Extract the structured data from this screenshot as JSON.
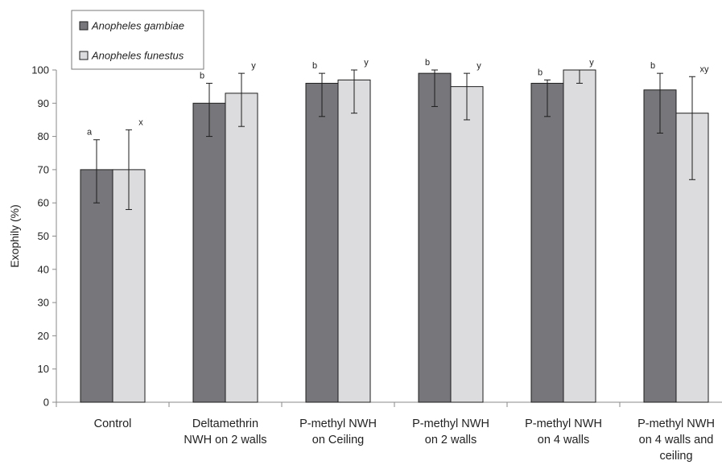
{
  "chart_data": {
    "type": "bar",
    "ylabel": "Exophily (%)",
    "xlabel": "",
    "ylim": [
      0,
      100
    ],
    "yticks": [
      0,
      10,
      20,
      30,
      40,
      50,
      60,
      70,
      80,
      90,
      100
    ],
    "grid": false,
    "legend_position": "top-left",
    "categories": [
      [
        "Control"
      ],
      [
        "Deltamethrin",
        "NWH on 2 walls"
      ],
      [
        "P-methyl NWH",
        "on Ceiling"
      ],
      [
        "P-methyl NWH",
        "on 2 walls"
      ],
      [
        "P-methyl NWH",
        "on 4 walls"
      ],
      [
        "P-methyl NWH",
        "on 4 walls and",
        "ceiling"
      ]
    ],
    "series": [
      {
        "name": "Anopheles gambiae",
        "color": "#77777b",
        "values": [
          70,
          90,
          96,
          99,
          96,
          94
        ],
        "error_low": [
          60,
          80,
          86,
          89,
          86,
          81
        ],
        "error_high": [
          79,
          96,
          99,
          100,
          97,
          99
        ],
        "letters": [
          "a",
          "b",
          "b",
          "b",
          "b",
          "b"
        ]
      },
      {
        "name": "Anopheles funestus",
        "color": "#dcdcde",
        "values": [
          70,
          93,
          97,
          95,
          100,
          87
        ],
        "error_low": [
          58,
          83,
          87,
          85,
          96,
          67
        ],
        "error_high": [
          82,
          99,
          100,
          99,
          100,
          98
        ],
        "letters": [
          "x",
          "y",
          "y",
          "y",
          "y",
          "xy"
        ]
      }
    ]
  }
}
